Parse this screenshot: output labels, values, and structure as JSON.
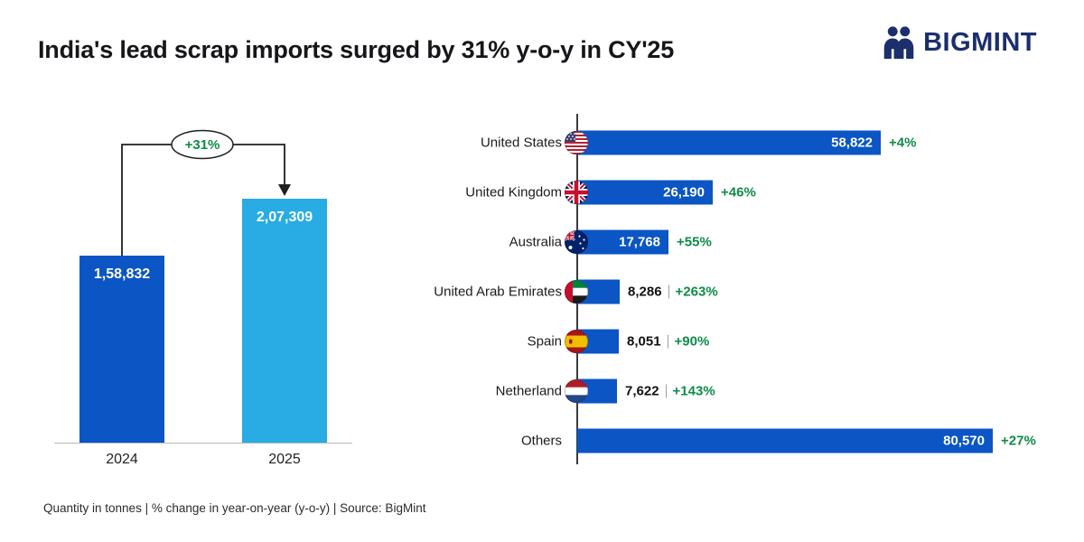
{
  "header": {
    "title": "India's lead scrap imports surged by 31% y-o-y in CY'25",
    "brand": "BIGMINT",
    "brand_color": "#1b2e6e"
  },
  "footer": {
    "note": "Quantity in tonnes  |  % change in year-on-year (y-o-y)  |  Source: BigMint"
  },
  "colors": {
    "dark_blue": "#0b55c5",
    "light_blue": "#29ace3",
    "green": "#0d8c46"
  },
  "chart_data": [
    {
      "type": "bar",
      "title": "India lead scrap imports total by year",
      "categories": [
        "2024",
        "2025"
      ],
      "values": [
        158832,
        207309
      ],
      "value_labels": [
        "1,58,832",
        "2,07,309"
      ],
      "annotation": "+31%",
      "bar_colors": [
        "#0b55c5",
        "#29ace3"
      ],
      "ylabel": "Quantity in tonnes"
    },
    {
      "type": "bar",
      "orientation": "horizontal",
      "title": "Lead scrap imports by source country CY'25",
      "categories": [
        "United States",
        "United Kingdom",
        "Australia",
        "United Arab Emirates",
        "Spain",
        "Netherland",
        "Others"
      ],
      "values": [
        58822,
        26190,
        17768,
        8286,
        8051,
        7622,
        80570
      ],
      "value_labels": [
        "58,822",
        "26,190",
        "17,768",
        "8,286",
        "8,051",
        "7,622",
        "80,570"
      ],
      "pct_changes": [
        "+4%",
        "+46%",
        "+55%",
        "+263%",
        "+90%",
        "+143%",
        "+27%"
      ],
      "flags": [
        "us",
        "gb",
        "au",
        "ae",
        "es",
        "nl",
        null
      ],
      "bar_color": "#0b55c5",
      "pct_color": "#0d8c46",
      "xlim": [
        0,
        80570
      ]
    }
  ]
}
